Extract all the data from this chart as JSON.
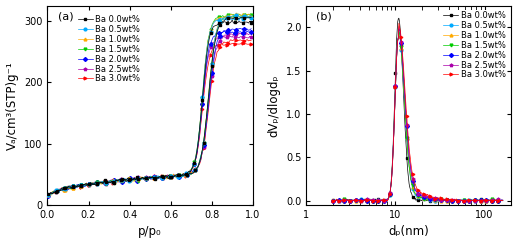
{
  "series_labels": [
    "Ba 0.0wt%",
    "Ba 0.5wt%",
    "Ba 1.0wt%",
    "Ba 1.5wt%",
    "Ba 2.0wt%",
    "Ba 2.5wt%",
    "Ba 3.0wt%"
  ],
  "series_colors": [
    "#000000",
    "#00aaff",
    "#ffaa00",
    "#00cc00",
    "#0000ff",
    "#aa00aa",
    "#ff0000"
  ],
  "series_markers": [
    "s",
    "o",
    "^",
    "v",
    "D",
    "p",
    ">"
  ],
  "panel_a": {
    "xlabel": "p/p₀",
    "ylabel": "Vₐ/cm³(STP)g⁻¹",
    "label": "(a)",
    "xlim": [
      0.0,
      1.0
    ],
    "ylim": [
      0,
      325
    ],
    "xticks": [
      0.0,
      0.2,
      0.4,
      0.6,
      0.8,
      1.0
    ],
    "yticks": [
      0,
      100,
      200,
      300
    ]
  },
  "panel_b": {
    "xlabel": "dₚ(nm)",
    "ylabel": "dVₚ/dlogdₚ",
    "label": "(b)",
    "xlim": [
      1,
      200
    ],
    "ylim": [
      -0.05,
      2.25
    ],
    "yticks": [
      0.0,
      0.5,
      1.0,
      1.5,
      2.0
    ]
  },
  "figure_bg": "#ffffff",
  "legend_fontsize": 6.0,
  "tick_labelsize": 7,
  "axis_labelsize": 8.5
}
